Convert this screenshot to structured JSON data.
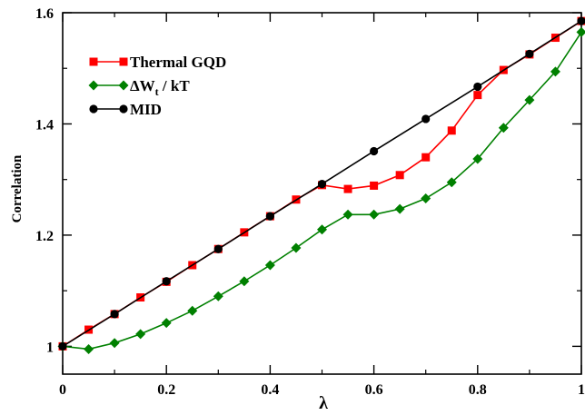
{
  "chart_data": {
    "type": "line",
    "xlabel": "λ",
    "ylabel": "Correlation",
    "xlim": [
      0,
      1
    ],
    "ylim": [
      0.95,
      1.6
    ],
    "xticks": [
      0,
      0.2,
      0.4,
      0.6,
      0.8,
      1
    ],
    "xtick_labels": [
      "0",
      "0.2",
      "0.4",
      "0.6",
      "0.8",
      "1"
    ],
    "yticks": [
      1,
      1.2,
      1.4,
      1.6
    ],
    "ytick_labels": [
      "1",
      "1.2",
      "1.4",
      "1.6"
    ],
    "grid": false,
    "legend_position": "top-left",
    "series": [
      {
        "name": "Thermal GQD",
        "legend_main": "Thermal GQD",
        "legend_sub": "",
        "legend_tail": "",
        "color": "#ff0000",
        "marker": "square",
        "x": [
          0,
          0.05,
          0.1,
          0.15,
          0.2,
          0.25,
          0.3,
          0.35,
          0.4,
          0.45,
          0.5,
          0.55,
          0.6,
          0.65,
          0.7,
          0.75,
          0.8,
          0.85,
          0.9,
          0.95,
          1
        ],
        "y": [
          1.0,
          1.03,
          1.058,
          1.088,
          1.116,
          1.146,
          1.175,
          1.205,
          1.234,
          1.264,
          1.29,
          1.283,
          1.289,
          1.308,
          1.34,
          1.388,
          1.452,
          1.497,
          1.525,
          1.555,
          1.585
        ]
      },
      {
        "name": "ΔWt / kT",
        "legend_main": "ΔW",
        "legend_sub": "t",
        "legend_tail": " / kT",
        "color": "#008000",
        "marker": "diamond",
        "x": [
          0,
          0.05,
          0.1,
          0.15,
          0.2,
          0.25,
          0.3,
          0.35,
          0.4,
          0.45,
          0.5,
          0.55,
          0.6,
          0.65,
          0.7,
          0.75,
          0.8,
          0.85,
          0.9,
          0.95,
          1
        ],
        "y": [
          1.0,
          0.995,
          1.006,
          1.022,
          1.042,
          1.064,
          1.09,
          1.117,
          1.146,
          1.177,
          1.21,
          1.237,
          1.237,
          1.247,
          1.266,
          1.295,
          1.337,
          1.393,
          1.443,
          1.494,
          1.565
        ]
      },
      {
        "name": "MID",
        "legend_main": "MID",
        "legend_sub": "",
        "legend_tail": "",
        "color": "#000000",
        "marker": "circle",
        "x": [
          0,
          0.1,
          0.2,
          0.3,
          0.4,
          0.5,
          0.6,
          0.7,
          0.8,
          0.9,
          1
        ],
        "y": [
          1.0,
          1.058,
          1.117,
          1.175,
          1.234,
          1.292,
          1.351,
          1.409,
          1.467,
          1.526,
          1.585
        ]
      }
    ]
  }
}
